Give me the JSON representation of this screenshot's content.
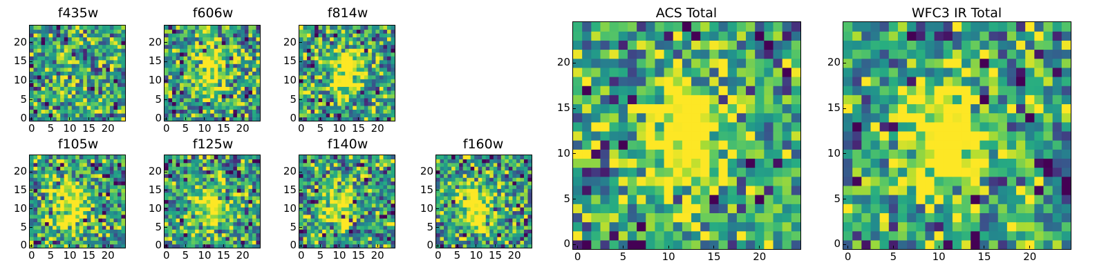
{
  "chart_data": [
    {
      "id": "f435w",
      "type": "heatmap",
      "title": "f435w",
      "colormap": "viridis",
      "grid_size": 25,
      "seed": 11,
      "blob": [
        9,
        10,
        0.4
      ],
      "x_ticks": [
        "0",
        "5",
        "10",
        "15",
        "20"
      ],
      "x_tick_values": [
        0,
        5,
        10,
        15,
        20
      ],
      "y_ticks": [
        "0",
        "5",
        "10",
        "15",
        "20"
      ],
      "y_tick_values": [
        0,
        5,
        10,
        15,
        20
      ]
    },
    {
      "id": "f606w",
      "type": "heatmap",
      "title": "f606w",
      "colormap": "viridis",
      "grid_size": 25,
      "seed": 23,
      "blob": [
        12,
        13,
        1.6
      ],
      "x_ticks": [
        "0",
        "5",
        "10",
        "15",
        "20"
      ],
      "x_tick_values": [
        0,
        5,
        10,
        15,
        20
      ],
      "y_ticks": [
        "0",
        "5",
        "10",
        "15",
        "20"
      ],
      "y_tick_values": [
        0,
        5,
        10,
        15,
        20
      ]
    },
    {
      "id": "f814w",
      "type": "heatmap",
      "title": "f814w",
      "colormap": "viridis",
      "grid_size": 25,
      "seed": 37,
      "blob": [
        12,
        13,
        1.8
      ],
      "x_ticks": [
        "0",
        "5",
        "10",
        "15",
        "20"
      ],
      "x_tick_values": [
        0,
        5,
        10,
        15,
        20
      ],
      "y_ticks": [
        "0",
        "5",
        "10",
        "15",
        "20"
      ],
      "y_tick_values": [
        0,
        5,
        10,
        15,
        20
      ]
    },
    {
      "id": "f105w",
      "type": "heatmap",
      "title": "f105w",
      "colormap": "viridis",
      "grid_size": 25,
      "seed": 41,
      "blob": [
        10,
        10,
        1.8
      ],
      "x_ticks": [
        "0",
        "5",
        "10",
        "15",
        "20"
      ],
      "x_tick_values": [
        0,
        5,
        10,
        15,
        20
      ],
      "y_ticks": [
        "0",
        "5",
        "10",
        "15",
        "20"
      ],
      "y_tick_values": [
        0,
        5,
        10,
        15,
        20
      ]
    },
    {
      "id": "f125w",
      "type": "heatmap",
      "title": "f125w",
      "colormap": "viridis",
      "grid_size": 25,
      "seed": 53,
      "blob": [
        11,
        10,
        1.4
      ],
      "x_ticks": [
        "0",
        "5",
        "10",
        "15",
        "20"
      ],
      "x_tick_values": [
        0,
        5,
        10,
        15,
        20
      ],
      "y_ticks": [
        "0",
        "5",
        "10",
        "15",
        "20"
      ],
      "y_tick_values": [
        0,
        5,
        10,
        15,
        20
      ]
    },
    {
      "id": "f140w",
      "type": "heatmap",
      "title": "f140w",
      "colormap": "viridis",
      "grid_size": 25,
      "seed": 67,
      "blob": [
        10,
        11,
        1.5
      ],
      "x_ticks": [
        "0",
        "5",
        "10",
        "15",
        "20"
      ],
      "x_tick_values": [
        0,
        5,
        10,
        15,
        20
      ],
      "y_ticks": [
        "0",
        "5",
        "10",
        "15",
        "20"
      ],
      "y_tick_values": [
        0,
        5,
        10,
        15,
        20
      ]
    },
    {
      "id": "f160w",
      "type": "heatmap",
      "title": "f160w",
      "colormap": "viridis",
      "grid_size": 25,
      "seed": 79,
      "blob": [
        10,
        11,
        1.6
      ],
      "x_ticks": [
        "0",
        "5",
        "10",
        "15",
        "20"
      ],
      "x_tick_values": [
        0,
        5,
        10,
        15,
        20
      ],
      "y_ticks": [
        "0",
        "5",
        "10",
        "15",
        "20"
      ],
      "y_tick_values": [
        0,
        5,
        10,
        15,
        20
      ]
    },
    {
      "id": "acs-total",
      "type": "heatmap",
      "title": "ACS Total",
      "colormap": "viridis",
      "grid_size": 25,
      "seed": 97,
      "blob": [
        12,
        12,
        2.0
      ],
      "x_ticks": [
        "0",
        "5",
        "10",
        "15",
        "20"
      ],
      "x_tick_values": [
        0,
        5,
        10,
        15,
        20
      ],
      "y_ticks": [
        "0",
        "5",
        "10",
        "15",
        "20"
      ],
      "y_tick_values": [
        0,
        5,
        10,
        15,
        20
      ]
    },
    {
      "id": "wfc3-ir-total",
      "type": "heatmap",
      "title": "WFC3 IR Total",
      "colormap": "viridis",
      "grid_size": 25,
      "seed": 131,
      "blob": [
        10,
        11,
        2.0
      ],
      "x_ticks": [
        "0",
        "5",
        "10",
        "15",
        "20"
      ],
      "x_tick_values": [
        0,
        5,
        10,
        15,
        20
      ],
      "y_ticks": [
        "0",
        "5",
        "10",
        "15",
        "20"
      ],
      "y_tick_values": [
        0,
        5,
        10,
        15,
        20
      ]
    }
  ]
}
